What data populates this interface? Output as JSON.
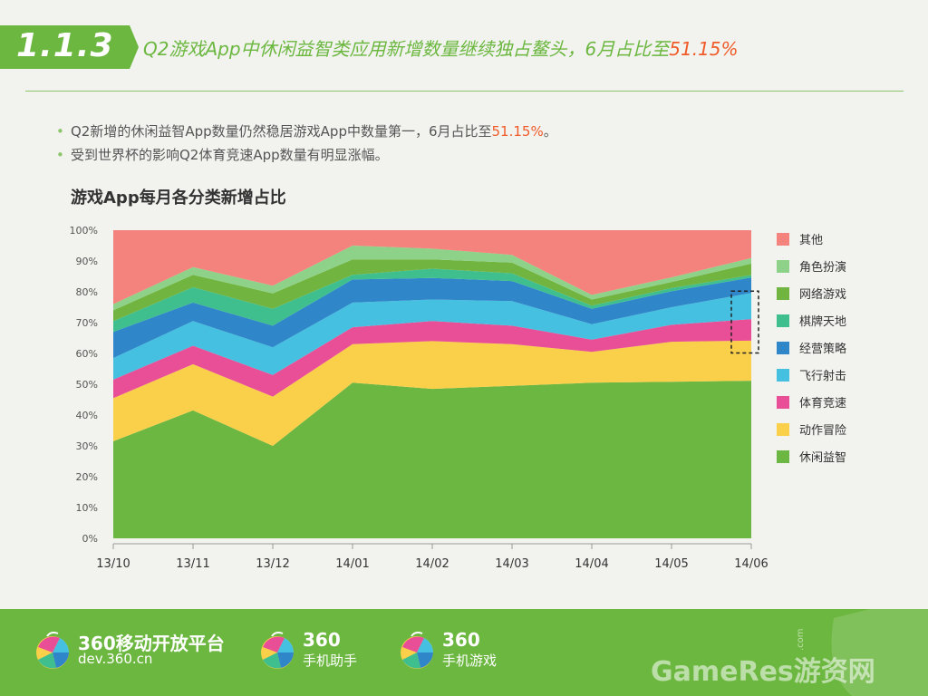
{
  "header": {
    "section_number": "1.1.3",
    "title_main": "Q2游戏App中休闲益智类应用新增数量继续独占鳌头，6月占比至",
    "title_highlight": "51.15%"
  },
  "bullets": [
    {
      "text": "Q2新增的休闲益智App数量仍然稳居游戏App中数量第一，6月占比至",
      "highlight": "51.15%",
      "suffix": "。"
    },
    {
      "text": "受到世界杯的影响Q2体育竞速App数量有明显涨幅。",
      "highlight": "",
      "suffix": ""
    }
  ],
  "chart_data": {
    "type": "area",
    "stacked": true,
    "title": "游戏App每月各分类新增占比",
    "categories": [
      "13/10",
      "13/11",
      "13/12",
      "14/01",
      "14/02",
      "14/03",
      "14/04",
      "14/05",
      "14/06"
    ],
    "y_ticks": [
      "0%",
      "10%",
      "20%",
      "30%",
      "40%",
      "50%",
      "60%",
      "70%",
      "80%",
      "90%",
      "100%"
    ],
    "ylim": [
      0,
      100
    ],
    "legend_position": "right",
    "grid": false,
    "highlight_box_category": "14/06",
    "series": [
      {
        "name": "休闲益智",
        "color": "#6bb742",
        "values": [
          31.5,
          41.5,
          30.0,
          50.5,
          48.5,
          49.5,
          50.5,
          50.8,
          51.15
        ]
      },
      {
        "name": "动作冒险",
        "color": "#fad04a",
        "values": [
          14.0,
          15.0,
          16.0,
          12.5,
          15.5,
          13.5,
          10.0,
          13.0,
          13.0
        ]
      },
      {
        "name": "体育竞速",
        "color": "#e94f96",
        "values": [
          6.0,
          6.0,
          7.0,
          5.5,
          6.5,
          6.0,
          4.0,
          5.5,
          7.0
        ]
      },
      {
        "name": "飞行射击",
        "color": "#45c0e0",
        "values": [
          7.0,
          8.0,
          9.0,
          8.0,
          7.0,
          8.0,
          5.0,
          5.7,
          8.5
        ]
      },
      {
        "name": "经营策略",
        "color": "#2f86c9",
        "values": [
          8.5,
          6.0,
          7.0,
          7.5,
          7.0,
          6.5,
          5.0,
          5.2,
          5.0
        ]
      },
      {
        "name": "棋牌天地",
        "color": "#3fbf8e",
        "values": [
          3.5,
          5.0,
          5.5,
          1.5,
          3.0,
          2.5,
          1.0,
          1.0,
          0.8
        ]
      },
      {
        "name": "网络游戏",
        "color": "#72b440",
        "values": [
          3.5,
          4.0,
          5.0,
          5.0,
          3.0,
          3.5,
          2.0,
          2.0,
          3.7
        ]
      },
      {
        "name": "角色扮演",
        "color": "#8ed28a",
        "values": [
          2.0,
          2.5,
          2.5,
          4.5,
          3.5,
          2.5,
          1.5,
          1.5,
          1.8
        ]
      },
      {
        "name": "其他",
        "color": "#f4837d",
        "values": [
          24.0,
          12.0,
          18.0,
          5.0,
          6.0,
          8.0,
          21.0,
          15.3,
          9.05
        ]
      }
    ]
  },
  "footer": {
    "brands": [
      {
        "line1": "360移动开放平台",
        "line2": "dev.360.cn"
      },
      {
        "line1": "360",
        "line2": "手机助手"
      },
      {
        "line1": "360",
        "line2": "手机游戏"
      }
    ],
    "watermark": "GameRes游资网",
    "watermark_com": ".com"
  }
}
